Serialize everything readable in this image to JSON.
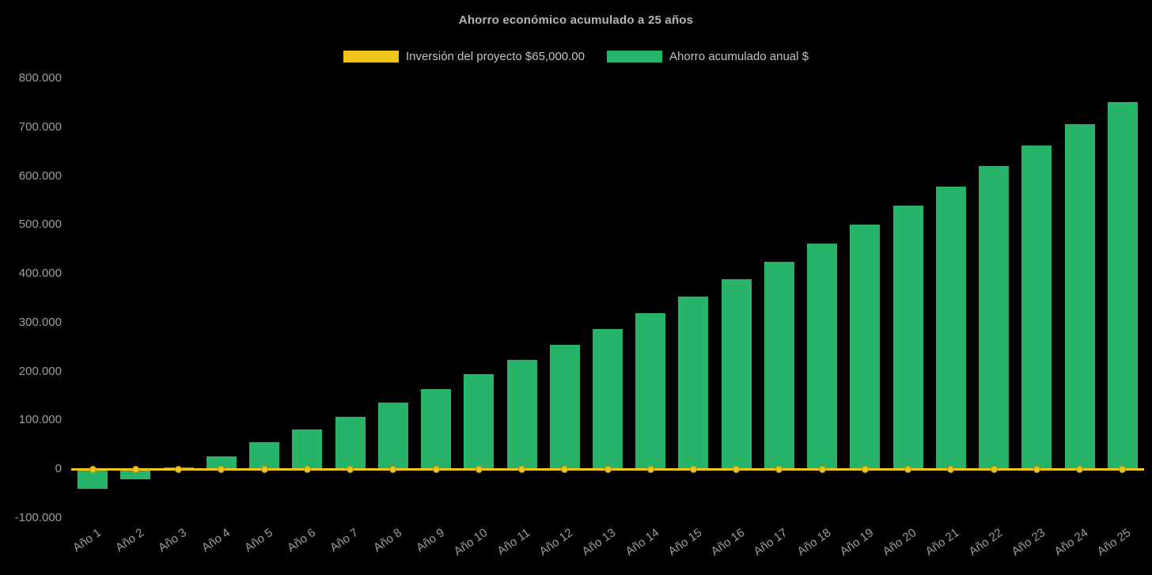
{
  "chart_data": {
    "type": "bar",
    "title": "Ahorro económico acumulado a 25 años",
    "categories": [
      "Año 1",
      "Año 2",
      "Año 3",
      "Año 4",
      "Año 5",
      "Año 6",
      "Año 7",
      "Año 8",
      "Año 9",
      "Año 10",
      "Año 11",
      "Año 12",
      "Año 13",
      "Año 14",
      "Año 15",
      "Año 16",
      "Año 17",
      "Año 18",
      "Año 19",
      "Año 20",
      "Año 21",
      "Año 22",
      "Año 23",
      "Año 24",
      "Año 25"
    ],
    "series": [
      {
        "name": "Inversión del proyecto $65,000.00",
        "type": "line",
        "color": "#F0C41B",
        "marker_color": "#F0C41B",
        "marker_border_color": "#C79A00",
        "values": [
          0,
          0,
          0,
          0,
          0,
          0,
          0,
          0,
          0,
          0,
          0,
          0,
          0,
          0,
          0,
          0,
          0,
          0,
          0,
          0,
          0,
          0,
          0,
          0,
          0
        ]
      },
      {
        "name": "Ahorro acumulado anual $",
        "type": "bar",
        "color": "#27B36A",
        "values": [
          -40000,
          -20000,
          3000,
          27000,
          55000,
          81000,
          108000,
          136000,
          164000,
          194000,
          224000,
          255000,
          287000,
          320000,
          354000,
          389000,
          425000,
          462000,
          500000,
          539000,
          579000,
          620000,
          662000,
          706000,
          752000
        ]
      }
    ],
    "ylim": [
      -100000,
      800000
    ],
    "y_tick_step": 100000,
    "y_tick_labels": [
      "800.000",
      "700.000",
      "600.000",
      "500.000",
      "400.000",
      "300.000",
      "200.000",
      "100.000",
      "0",
      "-100.000"
    ],
    "grid": false,
    "legend_position": "top",
    "styles": {
      "background": "#000000",
      "title_color": "#B5B5B5",
      "axis_text_color": "#9E9E9E",
      "legend_text_color": "#C2C2C2"
    }
  }
}
